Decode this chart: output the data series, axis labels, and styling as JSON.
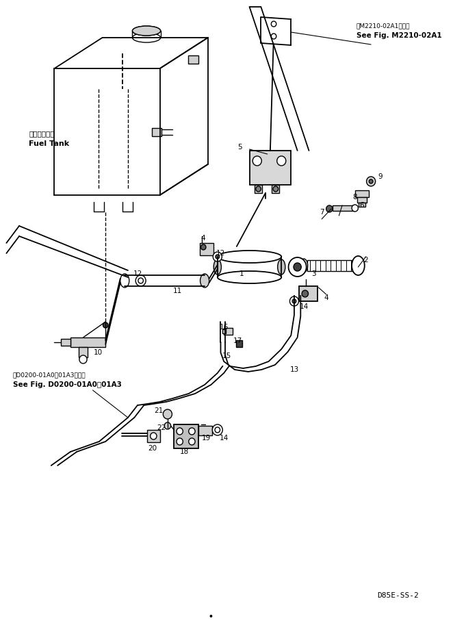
{
  "background_color": "#ffffff",
  "line_color": "#000000",
  "fig_width": 6.62,
  "fig_height": 9.32,
  "dpi": 100,
  "top_ref_jp": "第M2210-02A1図参照",
  "top_ref_en": "See Fig. M2210-02A1",
  "tank_jp": "フェルタンク",
  "tank_en": "Fuel Tank",
  "bot_ref_jp": "第D0200-01A0～01A3図参照",
  "bot_ref_en": "See Fig. D0200-01A0～01A3",
  "model": "D85E-SS-2"
}
